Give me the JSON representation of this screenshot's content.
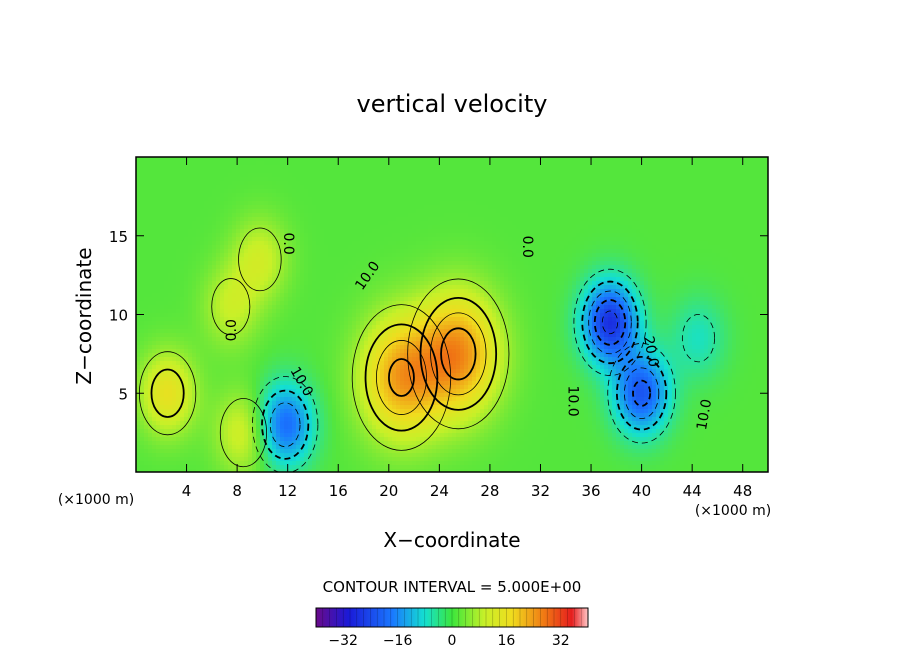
{
  "chart_data": {
    "type": "heatmap",
    "title": "vertical velocity",
    "xlabel": "X−coordinate",
    "ylabel": "Z−coordinate",
    "x_unit_left": "(×1000 m)",
    "x_unit_right": "(×1000 m)",
    "xlim": [
      0,
      50
    ],
    "ylim": [
      0,
      20
    ],
    "x_ticks": [
      4,
      8,
      12,
      16,
      20,
      24,
      28,
      32,
      36,
      40,
      44,
      48
    ],
    "y_ticks": [
      5,
      10,
      15
    ],
    "contour_interval_text": "CONTOUR INTERVAL = 5.000E+00",
    "contour_labels": [
      {
        "text": "0.0",
        "x": 7.9,
        "y": 9.0,
        "rot": -90
      },
      {
        "text": "0.0",
        "x": 11.7,
        "y": 14.5,
        "rot": 90
      },
      {
        "text": "10.0",
        "x": 12.8,
        "y": 5.6,
        "rot": 60
      },
      {
        "text": "10.0",
        "x": 18.6,
        "y": 12.3,
        "rot": -55
      },
      {
        "text": "0.0",
        "x": 30.6,
        "y": 14.3,
        "rot": 90
      },
      {
        "text": "10.0",
        "x": 34.2,
        "y": 4.5,
        "rot": 90
      },
      {
        "text": "20.0",
        "x": 40.4,
        "y": 7.6,
        "rot": 80
      },
      {
        "text": "10.0",
        "x": 45.3,
        "y": 3.6,
        "rot": -80
      }
    ],
    "features": [
      {
        "name": "updraft",
        "x": 2.5,
        "y": 5.0,
        "peak": 14
      },
      {
        "name": "updraft",
        "x": 7.5,
        "y": 10.5,
        "peak": 8
      },
      {
        "name": "updraft",
        "x": 9.8,
        "y": 13.5,
        "peak": 9
      },
      {
        "name": "updraft",
        "x": 8.5,
        "y": 2.5,
        "peak": 10
      },
      {
        "name": "updraft",
        "x": 21.0,
        "y": 6.0,
        "peak": 22
      },
      {
        "name": "updraft",
        "x": 25.5,
        "y": 7.5,
        "peak": 24
      },
      {
        "name": "downdraft",
        "x": 11.8,
        "y": 3.0,
        "peak": -20
      },
      {
        "name": "downdraft",
        "x": 37.5,
        "y": 9.5,
        "peak": -27
      },
      {
        "name": "downdraft",
        "x": 40.0,
        "y": 5.0,
        "peak": -22
      },
      {
        "name": "downdraft",
        "x": 44.5,
        "y": 8.5,
        "peak": -7
      }
    ],
    "colorbar": {
      "range": [
        -40,
        40
      ],
      "ticks": [
        -32,
        -16,
        0,
        16,
        32
      ],
      "tick_labels": [
        "−32",
        "−16",
        "0",
        "16",
        "32"
      ]
    }
  }
}
